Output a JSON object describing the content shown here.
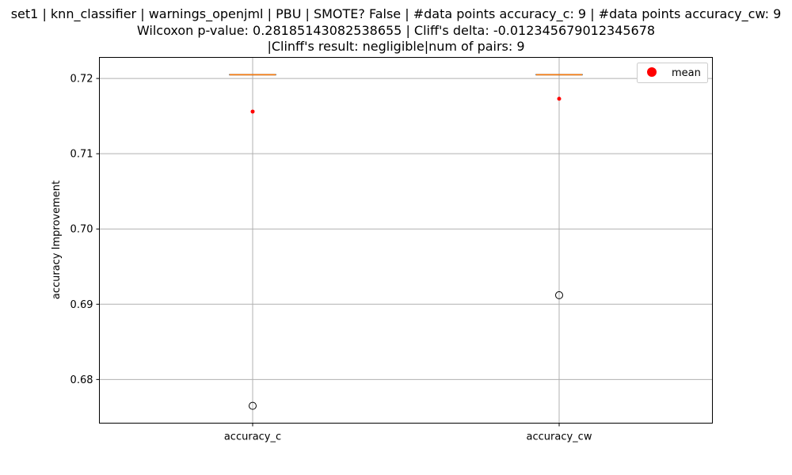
{
  "chart_data": {
    "type": "box",
    "title_lines": [
      "set1 | knn_classifier | warnings_openjml | PBU | SMOTE? False | #data points accuracy_c: 9 | #data points accuracy_cw: 9",
      "Wilcoxon p-value: 0.28185143082538655 | Cliff's delta: -0.012345679012345678",
      "|Clinff's result: negligible|num of pairs: 9"
    ],
    "ylabel": "accuracy Improvement",
    "xlabel": "",
    "categories": [
      "accuracy_c",
      "accuracy_cw"
    ],
    "ylim": [
      0.6742,
      0.7228
    ],
    "yticks": [
      0.68,
      0.69,
      0.7,
      0.71,
      0.72
    ],
    "ytick_labels": [
      "0.68",
      "0.69",
      "0.70",
      "0.71",
      "0.72"
    ],
    "grid": true,
    "legend": {
      "position": "top-right",
      "entries": [
        {
          "label": "mean",
          "color": "#ff0000"
        }
      ]
    },
    "boxes": [
      {
        "category": "accuracy_c",
        "q1": 0.7205,
        "median": 0.7205,
        "q3": 0.7205,
        "whisker_low": 0.7205,
        "whisker_high": 0.7205,
        "outliers": [
          0.6765
        ],
        "mean": 0.7156
      },
      {
        "category": "accuracy_cw",
        "q1": 0.7205,
        "median": 0.7205,
        "q3": 0.7205,
        "whisker_low": 0.7205,
        "whisker_high": 0.7205,
        "outliers": [
          0.6912
        ],
        "mean": 0.7173
      }
    ],
    "colors": {
      "box": "#000000",
      "median": "#ff7f0e",
      "mean": "#ff0000",
      "grid": "#b0b0b0"
    }
  }
}
